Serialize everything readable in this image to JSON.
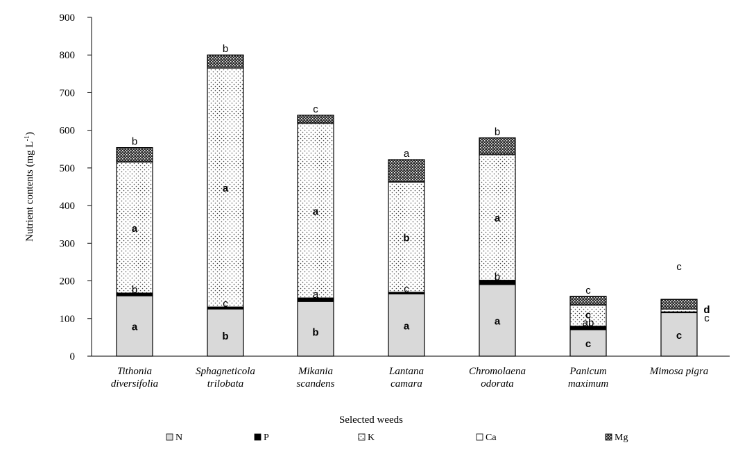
{
  "chart_data": {
    "type": "bar",
    "stacked": true,
    "xlabel": "Selected weeds",
    "ylabel": "Nutrient contents (mg L-1)",
    "ylabel_parts": {
      "pre": "Nutrient contents (mg L",
      "sup": "-1",
      "post": ")"
    },
    "ylim": [
      0,
      900
    ],
    "yticks": [
      "0",
      "100",
      "200",
      "300",
      "400",
      "500",
      "600",
      "700",
      "800",
      "900"
    ],
    "grid": false,
    "legend_position": "bottom",
    "categories": [
      [
        "Tithonia",
        "diversifolia"
      ],
      [
        "Sphagneticola",
        "trilobata"
      ],
      [
        "Mikania",
        "scandens"
      ],
      [
        "Lantana",
        "camara"
      ],
      [
        "Chromolaena",
        "odorata"
      ],
      [
        "Panicum",
        "maximum"
      ],
      [
        "Mimosa pigra"
      ]
    ],
    "series": [
      {
        "name": "N",
        "values": [
          160,
          125,
          145,
          165,
          190,
          70,
          115
        ]
      },
      {
        "name": "P",
        "values": [
          8,
          6,
          10,
          5,
          12,
          10,
          3
        ]
      },
      {
        "name": "K",
        "values": [
          347,
          634,
          463,
          292,
          333,
          55,
          7
        ]
      },
      {
        "name": "Ca",
        "values": [
          2,
          2,
          2,
          2,
          2,
          2,
          2
        ]
      },
      {
        "name": "Mg",
        "values": [
          37,
          33,
          20,
          58,
          43,
          22,
          24
        ]
      }
    ],
    "letters": {
      "N": [
        "a",
        "b",
        "b",
        "a",
        "a",
        "c",
        "c"
      ],
      "P": [
        "b",
        "c",
        "a",
        "c",
        "b",
        "ab",
        "c"
      ],
      "K": [
        "a",
        "a",
        "a",
        "b",
        "a",
        "c",
        "d"
      ],
      "Mg": [
        "b",
        "b",
        "c",
        "a",
        "b",
        "c",
        "c"
      ]
    }
  },
  "colors": {
    "N": "#d9d9d9",
    "P": "#000000",
    "K": "#ffffff",
    "Ca": "#ffffff",
    "Mg": "#1a1a1a"
  }
}
